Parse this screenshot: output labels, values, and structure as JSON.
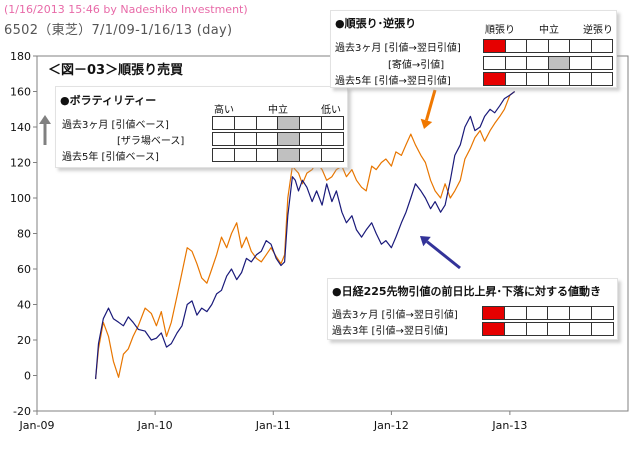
{
  "header": {
    "date_credit": "(1/16/2013 15:46 by Nadeshiko Investment)",
    "ticker": "6502（東芝）7/1/09-1/16/13 (day)"
  },
  "figure_title": "＜図－03＞順張り売買",
  "panels": {
    "volatility": {
      "title": "●ボラティリティー",
      "headers": [
        "高い",
        "中立",
        "低い"
      ],
      "rows": [
        {
          "label": "過去3ヶ月 [引値ベース]",
          "active": 3,
          "color": "#c0c0c0"
        },
        {
          "label": "[ザラ場ベース]",
          "active": 3,
          "color": "#c0c0c0"
        },
        {
          "label": "過去5年 [引値ベース]",
          "active": 3,
          "color": "#c0c0c0"
        }
      ]
    },
    "trend": {
      "title": "●順張り･逆張り",
      "headers": [
        "順張り",
        "中立",
        "逆張り"
      ],
      "rows": [
        {
          "label": "過去3ヶ月 [引値→翌日引値]",
          "active": 0,
          "color": "#e60000"
        },
        {
          "label": "[寄値→引値]",
          "active": 3,
          "color": "#c0c0c0"
        },
        {
          "label": "過去5年 [引値→翌日引値]",
          "active": 0,
          "color": "#e60000"
        }
      ]
    },
    "nikkei": {
      "title": "●日経225先物引値の前日比上昇･下落に対する値動き",
      "rows": [
        {
          "label": "過去3ヶ月 [引値→翌日引値]",
          "active": 0,
          "color": "#e60000"
        },
        {
          "label": "過去3年 [引値→翌日引値]",
          "active": 0,
          "color": "#e60000"
        }
      ]
    }
  },
  "arrows": {
    "gray": "#808080",
    "orange": "#f07800",
    "navy": "#333399"
  },
  "chart_data": {
    "type": "line",
    "ylim": [
      -20,
      180
    ],
    "yticks": [
      -20,
      0,
      20,
      40,
      60,
      80,
      100,
      120,
      140,
      160,
      180
    ],
    "xlim": [
      "2009-01-01",
      "2014-01-01"
    ],
    "xticks": [
      {
        "x": "2009-01-01",
        "label": "Jan-09"
      },
      {
        "x": "2010-01-01",
        "label": "Jan-10"
      },
      {
        "x": "2011-01-01",
        "label": "Jan-11"
      },
      {
        "x": "2012-01-01",
        "label": "Jan-12"
      },
      {
        "x": "2013-01-01",
        "label": "Jan-13"
      }
    ],
    "grid": false,
    "series": [
      {
        "color": "#e87600",
        "points": [
          [
            "2009-07-01",
            -2
          ],
          [
            "2009-07-10",
            15
          ],
          [
            "2009-07-25",
            30
          ],
          [
            "2009-08-10",
            22
          ],
          [
            "2009-08-25",
            8
          ],
          [
            "2009-09-10",
            -1
          ],
          [
            "2009-09-25",
            12
          ],
          [
            "2009-10-10",
            15
          ],
          [
            "2009-10-25",
            22
          ],
          [
            "2009-11-10",
            28
          ],
          [
            "2009-12-01",
            38
          ],
          [
            "2009-12-20",
            35
          ],
          [
            "2010-01-05",
            28
          ],
          [
            "2010-01-20",
            36
          ],
          [
            "2010-02-05",
            22
          ],
          [
            "2010-02-20",
            30
          ],
          [
            "2010-03-10",
            45
          ],
          [
            "2010-03-25",
            58
          ],
          [
            "2010-04-10",
            72
          ],
          [
            "2010-04-25",
            70
          ],
          [
            "2010-05-10",
            63
          ],
          [
            "2010-05-25",
            55
          ],
          [
            "2010-06-10",
            52
          ],
          [
            "2010-06-25",
            60
          ],
          [
            "2010-07-10",
            68
          ],
          [
            "2010-07-25",
            78
          ],
          [
            "2010-08-10",
            72
          ],
          [
            "2010-08-25",
            80
          ],
          [
            "2010-09-10",
            86
          ],
          [
            "2010-09-25",
            72
          ],
          [
            "2010-10-10",
            78
          ],
          [
            "2010-10-25",
            70
          ],
          [
            "2010-11-10",
            66
          ],
          [
            "2010-11-25",
            64
          ],
          [
            "2010-12-10",
            68
          ],
          [
            "2010-12-25",
            72
          ],
          [
            "2011-01-10",
            67
          ],
          [
            "2011-01-25",
            63
          ],
          [
            "2011-02-05",
            68
          ],
          [
            "2011-02-15",
            100
          ],
          [
            "2011-03-01",
            118
          ],
          [
            "2011-03-10",
            116
          ],
          [
            "2011-03-20",
            114
          ],
          [
            "2011-04-01",
            108
          ],
          [
            "2011-04-15",
            114
          ],
          [
            "2011-05-01",
            116
          ],
          [
            "2011-05-15",
            120
          ],
          [
            "2011-06-01",
            116
          ],
          [
            "2011-06-15",
            110
          ],
          [
            "2011-07-01",
            112
          ],
          [
            "2011-07-15",
            116
          ],
          [
            "2011-08-01",
            118
          ],
          [
            "2011-08-15",
            112
          ],
          [
            "2011-09-01",
            116
          ],
          [
            "2011-09-15",
            110
          ],
          [
            "2011-10-01",
            106
          ],
          [
            "2011-10-15",
            104
          ],
          [
            "2011-11-01",
            118
          ],
          [
            "2011-11-15",
            116
          ],
          [
            "2011-12-01",
            120
          ],
          [
            "2011-12-15",
            122
          ],
          [
            "2012-01-01",
            118
          ],
          [
            "2012-01-15",
            126
          ],
          [
            "2012-02-01",
            124
          ],
          [
            "2012-02-15",
            130
          ],
          [
            "2012-03-01",
            136
          ],
          [
            "2012-03-15",
            130
          ],
          [
            "2012-04-01",
            124
          ],
          [
            "2012-04-15",
            120
          ],
          [
            "2012-05-01",
            110
          ],
          [
            "2012-05-15",
            104
          ],
          [
            "2012-06-01",
            100
          ],
          [
            "2012-06-15",
            108
          ],
          [
            "2012-07-01",
            100
          ],
          [
            "2012-07-15",
            104
          ],
          [
            "2012-08-01",
            110
          ],
          [
            "2012-08-15",
            122
          ],
          [
            "2012-09-01",
            128
          ],
          [
            "2012-09-15",
            134
          ],
          [
            "2012-10-01",
            138
          ],
          [
            "2012-10-15",
            132
          ],
          [
            "2012-11-01",
            138
          ],
          [
            "2012-11-15",
            142
          ],
          [
            "2012-12-01",
            146
          ],
          [
            "2012-12-15",
            150
          ],
          [
            "2013-01-01",
            158
          ],
          [
            "2013-01-16",
            160
          ]
        ]
      },
      {
        "color": "#1a1a7a",
        "points": [
          [
            "2009-07-01",
            -2
          ],
          [
            "2009-07-10",
            18
          ],
          [
            "2009-07-25",
            32
          ],
          [
            "2009-08-10",
            38
          ],
          [
            "2009-08-25",
            32
          ],
          [
            "2009-09-10",
            30
          ],
          [
            "2009-09-25",
            28
          ],
          [
            "2009-10-10",
            33
          ],
          [
            "2009-10-25",
            30
          ],
          [
            "2009-11-10",
            26
          ],
          [
            "2009-12-01",
            25
          ],
          [
            "2009-12-20",
            20
          ],
          [
            "2010-01-05",
            21
          ],
          [
            "2010-01-20",
            24
          ],
          [
            "2010-02-05",
            16
          ],
          [
            "2010-02-20",
            18
          ],
          [
            "2010-03-10",
            24
          ],
          [
            "2010-03-25",
            28
          ],
          [
            "2010-04-10",
            40
          ],
          [
            "2010-04-25",
            42
          ],
          [
            "2010-05-10",
            34
          ],
          [
            "2010-05-25",
            38
          ],
          [
            "2010-06-10",
            36
          ],
          [
            "2010-06-25",
            40
          ],
          [
            "2010-07-10",
            46
          ],
          [
            "2010-07-25",
            48
          ],
          [
            "2010-08-10",
            56
          ],
          [
            "2010-08-25",
            60
          ],
          [
            "2010-09-10",
            54
          ],
          [
            "2010-09-25",
            58
          ],
          [
            "2010-10-10",
            66
          ],
          [
            "2010-10-25",
            64
          ],
          [
            "2010-11-10",
            68
          ],
          [
            "2010-11-25",
            70
          ],
          [
            "2010-12-10",
            76
          ],
          [
            "2010-12-25",
            74
          ],
          [
            "2011-01-10",
            66
          ],
          [
            "2011-01-25",
            62
          ],
          [
            "2011-02-05",
            64
          ],
          [
            "2011-02-15",
            90
          ],
          [
            "2011-03-01",
            112
          ],
          [
            "2011-03-10",
            110
          ],
          [
            "2011-03-20",
            104
          ],
          [
            "2011-04-01",
            110
          ],
          [
            "2011-04-15",
            106
          ],
          [
            "2011-05-01",
            98
          ],
          [
            "2011-05-15",
            104
          ],
          [
            "2011-06-01",
            96
          ],
          [
            "2011-06-15",
            108
          ],
          [
            "2011-07-01",
            98
          ],
          [
            "2011-07-15",
            104
          ],
          [
            "2011-08-01",
            92
          ],
          [
            "2011-08-15",
            86
          ],
          [
            "2011-09-01",
            90
          ],
          [
            "2011-09-15",
            82
          ],
          [
            "2011-10-01",
            78
          ],
          [
            "2011-10-15",
            82
          ],
          [
            "2011-11-01",
            86
          ],
          [
            "2011-11-15",
            80
          ],
          [
            "2011-12-01",
            74
          ],
          [
            "2011-12-15",
            76
          ],
          [
            "2012-01-01",
            72
          ],
          [
            "2012-01-15",
            78
          ],
          [
            "2012-02-01",
            86
          ],
          [
            "2012-02-15",
            92
          ],
          [
            "2012-03-01",
            100
          ],
          [
            "2012-03-15",
            108
          ],
          [
            "2012-04-01",
            104
          ],
          [
            "2012-04-15",
            100
          ],
          [
            "2012-05-01",
            94
          ],
          [
            "2012-05-15",
            98
          ],
          [
            "2012-06-01",
            92
          ],
          [
            "2012-06-15",
            96
          ],
          [
            "2012-07-01",
            110
          ],
          [
            "2012-07-15",
            124
          ],
          [
            "2012-08-01",
            130
          ],
          [
            "2012-08-15",
            140
          ],
          [
            "2012-09-01",
            146
          ],
          [
            "2012-09-15",
            138
          ],
          [
            "2012-10-01",
            140
          ],
          [
            "2012-10-15",
            146
          ],
          [
            "2012-11-01",
            150
          ],
          [
            "2012-11-15",
            148
          ],
          [
            "2012-12-01",
            152
          ],
          [
            "2012-12-15",
            156
          ],
          [
            "2013-01-01",
            158
          ],
          [
            "2013-01-16",
            160
          ]
        ]
      }
    ]
  }
}
